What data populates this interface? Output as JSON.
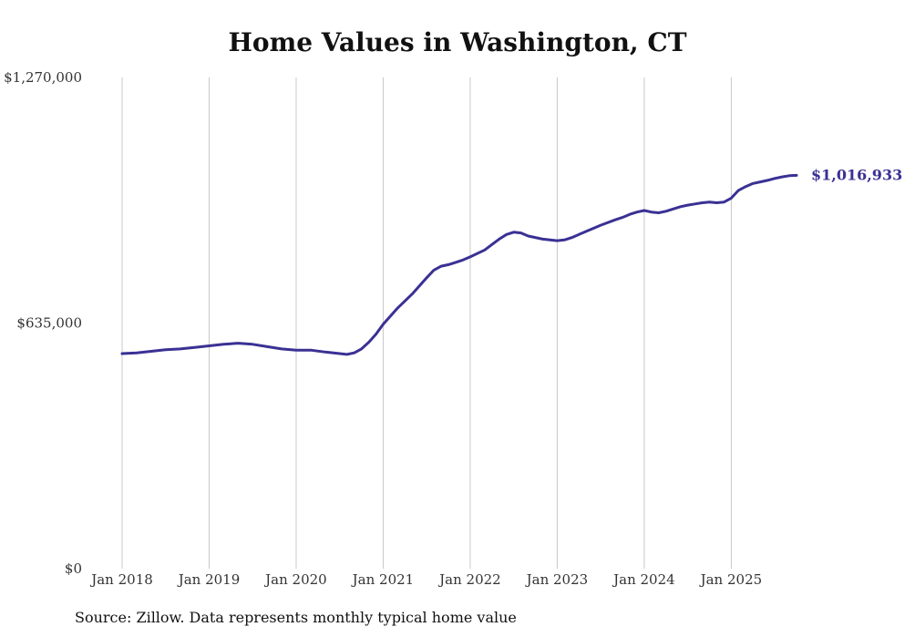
{
  "chart_data": {
    "type": "line",
    "title": "Home Values in Washington, CT",
    "source_note": "Source: Zillow. Data represents monthly typical home value",
    "xlabel": "",
    "ylabel": "",
    "ylim": [
      0,
      1270000
    ],
    "y_ticks": [
      {
        "value": 0,
        "label": "$0"
      },
      {
        "value": 635000,
        "label": "$635,000"
      },
      {
        "value": 1270000,
        "label": "$1,270,000"
      }
    ],
    "x_ticks": [
      {
        "value": 2018.0,
        "label": "Jan 2018"
      },
      {
        "value": 2019.0,
        "label": "Jan 2019"
      },
      {
        "value": 2020.0,
        "label": "Jan 2020"
      },
      {
        "value": 2021.0,
        "label": "Jan 2021"
      },
      {
        "value": 2022.0,
        "label": "Jan 2022"
      },
      {
        "value": 2023.0,
        "label": "Jan 2023"
      },
      {
        "value": 2024.0,
        "label": "Jan 2024"
      },
      {
        "value": 2025.0,
        "label": "Jan 2025"
      }
    ],
    "xlim": [
      2018.0,
      2025.75
    ],
    "grid": "vertical",
    "colors": {
      "line": "#3a3194",
      "grid": "#c8c8c8",
      "text": "#333333",
      "title": "#111111"
    },
    "series": [
      {
        "name": "Washington, CT",
        "x": [
          2018.0,
          2018.167,
          2018.333,
          2018.5,
          2018.667,
          2018.833,
          2019.0,
          2019.167,
          2019.333,
          2019.5,
          2019.667,
          2019.833,
          2020.0,
          2020.167,
          2020.333,
          2020.5,
          2020.583,
          2020.667,
          2020.75,
          2020.833,
          2020.917,
          2021.0,
          2021.167,
          2021.333,
          2021.5,
          2021.583,
          2021.667,
          2021.75,
          2021.833,
          2021.917,
          2022.0,
          2022.167,
          2022.25,
          2022.333,
          2022.417,
          2022.5,
          2022.583,
          2022.667,
          2022.833,
          2023.0,
          2023.083,
          2023.167,
          2023.333,
          2023.5,
          2023.667,
          2023.75,
          2023.833,
          2023.917,
          2024.0,
          2024.083,
          2024.167,
          2024.25,
          2024.333,
          2024.417,
          2024.5,
          2024.583,
          2024.667,
          2024.75,
          2024.833,
          2024.917,
          2025.0,
          2025.083,
          2025.167,
          2025.25,
          2025.333,
          2025.417,
          2025.5,
          2025.583,
          2025.667,
          2025.75
        ],
        "values": [
          556000,
          558000,
          562000,
          566000,
          568000,
          572000,
          576000,
          580000,
          583000,
          580000,
          574000,
          568000,
          565000,
          565000,
          560000,
          556000,
          554000,
          558000,
          568000,
          585000,
          606000,
          632000,
          674000,
          710000,
          752000,
          772000,
          782000,
          786000,
          792000,
          798000,
          806000,
          824000,
          838000,
          852000,
          864000,
          870000,
          868000,
          860000,
          852000,
          848000,
          850000,
          856000,
          872000,
          888000,
          902000,
          908000,
          916000,
          922000,
          926000,
          922000,
          920000,
          924000,
          930000,
          936000,
          940000,
          943000,
          946000,
          948000,
          946000,
          948000,
          958000,
          978000,
          988000,
          996000,
          1000000,
          1004000,
          1009000,
          1013000,
          1016000,
          1016933
        ]
      }
    ],
    "annotations": [
      {
        "label": "$1,016,933",
        "x": 2025.75,
        "y": 1016933
      }
    ]
  }
}
